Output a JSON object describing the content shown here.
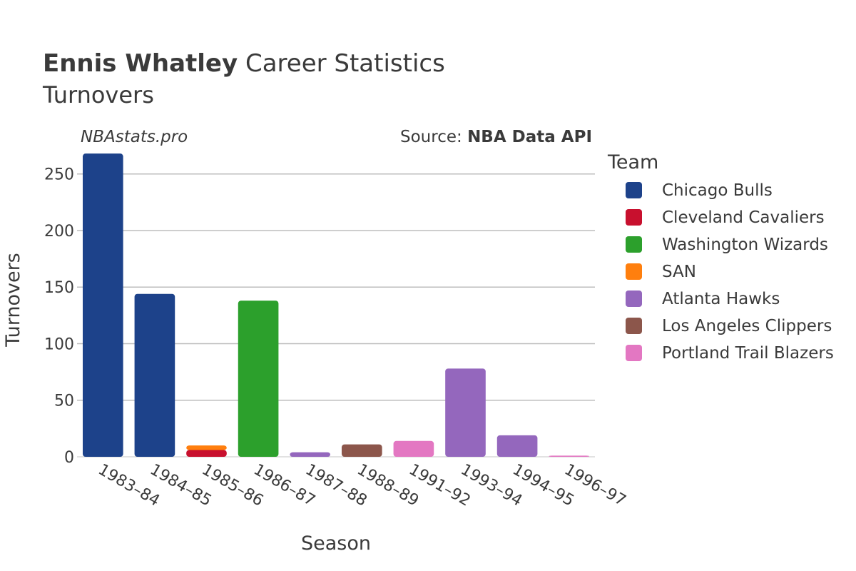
{
  "chart_data": {
    "type": "bar",
    "title_bold": "Ennis Whatley",
    "title_rest": " Career Statistics",
    "subtitle": "Turnovers",
    "watermark": "NBAstats.pro",
    "source_prefix": "Source: ",
    "source_name": "NBA Data API",
    "xlabel": "Season",
    "ylabel": "Turnovers",
    "ylim": [
      0,
      270
    ],
    "yticks": [
      0,
      50,
      100,
      150,
      200,
      250
    ],
    "categories": [
      "1983–84",
      "1984–85",
      "1985–86",
      "1986–87",
      "1987–88",
      "1988–89",
      "1991–92",
      "1993–94",
      "1994–95",
      "1996–97"
    ],
    "legend_title": "Team",
    "teams": [
      {
        "name": "Chicago Bulls",
        "color": "#1d428a"
      },
      {
        "name": "Cleveland Cavaliers",
        "color": "#c8102e"
      },
      {
        "name": "Washington Wizards",
        "color": "#2ca02c"
      },
      {
        "name": "SAN",
        "color": "#ff7f0e"
      },
      {
        "name": "Atlanta Hawks",
        "color": "#9467bd"
      },
      {
        "name": "Los Angeles Clippers",
        "color": "#8c564b"
      },
      {
        "name": "Portland Trail Blazers",
        "color": "#e377c2"
      }
    ],
    "series": [
      {
        "name": "Chicago Bulls",
        "values": [
          268,
          144,
          0,
          0,
          0,
          0,
          0,
          0,
          0,
          0
        ]
      },
      {
        "name": "Cleveland Cavaliers",
        "values": [
          0,
          0,
          6,
          0,
          0,
          0,
          0,
          0,
          0,
          0
        ]
      },
      {
        "name": "Washington Wizards",
        "values": [
          0,
          0,
          0,
          138,
          0,
          0,
          0,
          0,
          0,
          0
        ]
      },
      {
        "name": "SAN",
        "values": [
          0,
          0,
          4,
          0,
          0,
          0,
          0,
          0,
          0,
          0
        ]
      },
      {
        "name": "Atlanta Hawks",
        "values": [
          0,
          0,
          0,
          0,
          4,
          0,
          0,
          78,
          19,
          0
        ]
      },
      {
        "name": "Los Angeles Clippers",
        "values": [
          0,
          0,
          0,
          0,
          0,
          11,
          0,
          0,
          0,
          0
        ]
      },
      {
        "name": "Portland Trail Blazers",
        "values": [
          0,
          0,
          0,
          0,
          0,
          0,
          14,
          0,
          0,
          1
        ]
      }
    ]
  }
}
